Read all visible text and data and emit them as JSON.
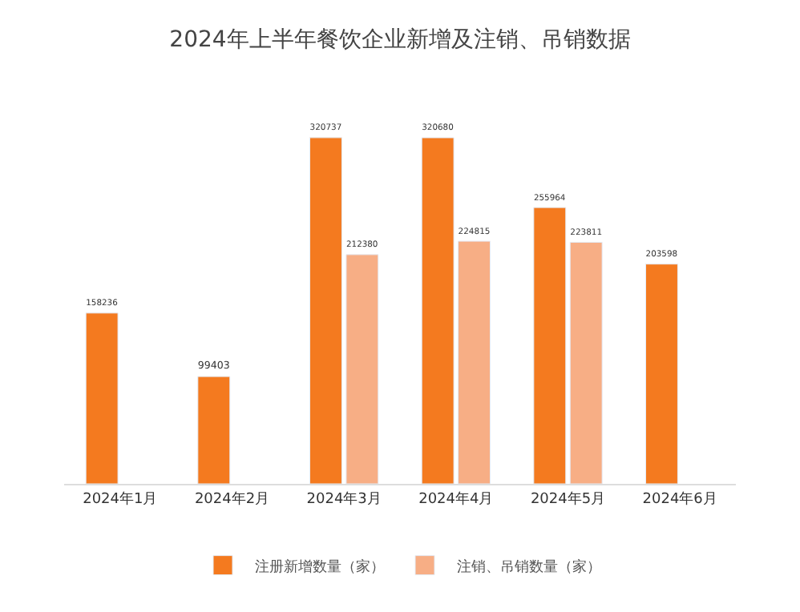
{
  "chart_data": {
    "type": "bar",
    "title": "2024年上半年餐饮企业新增及注销、吊销数据",
    "categories": [
      "2024年1月",
      "2024年2月",
      "2024年3月",
      "2024年4月",
      "2024年5月",
      "2024年6月"
    ],
    "series": [
      {
        "name": "注册新增数量（家）",
        "color": "#f47a1f",
        "values": [
          158236,
          99403,
          320737,
          320680,
          255964,
          203598
        ]
      },
      {
        "name": "注销、吊销数量（家）",
        "color": "#f7ae85",
        "values": [
          null,
          null,
          212380,
          224815,
          223811,
          null
        ]
      }
    ],
    "data_labels": true,
    "legend": "bottom"
  }
}
